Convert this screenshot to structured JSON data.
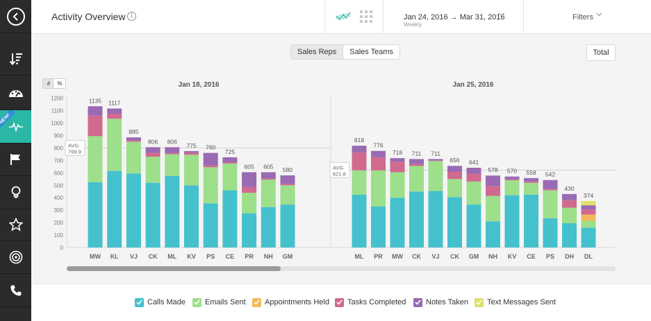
{
  "header": {
    "title": "Activity Overview",
    "info_icon": "i",
    "date_range": "Jan 24, 2016 → Mar 31, 2016",
    "granularity": "Weekly",
    "filters_label": "Filters"
  },
  "toolbar": {
    "sales_reps": "Sales Reps",
    "sales_teams": "Sales Teams",
    "total": "Total",
    "count_toggle": "#",
    "percent_toggle": "%"
  },
  "sidebar": {
    "items": [
      "back-icon",
      "sort-icon",
      "dashboard-icon",
      "activity-icon",
      "flag-icon",
      "lightbulb-icon",
      "star-icon",
      "target-icon",
      "phone-icon"
    ],
    "new_badge": "NEW!"
  },
  "colors": {
    "calls": "#45c0cd",
    "emails": "#9ddf8a",
    "appointments": "#f3b95a",
    "tasks": "#d06a8f",
    "notes": "#9a6ab2",
    "texts": "#dfe06a",
    "accent": "#2bb7a5",
    "sidebar": "#2b2b2b"
  },
  "legend": [
    {
      "label": "Calls Made",
      "key": "calls"
    },
    {
      "label": "Emails Sent",
      "key": "emails"
    },
    {
      "label": "Appointments Held",
      "key": "appointments"
    },
    {
      "label": "Tasks Completed",
      "key": "tasks"
    },
    {
      "label": "Notes Taken",
      "key": "notes"
    },
    {
      "label": "Text Messages Sent",
      "key": "texts"
    }
  ],
  "chart_data": [
    {
      "type": "bar",
      "stacked": true,
      "title": "Jan 18, 2016",
      "ylim": [
        0,
        1200
      ],
      "yticks": [
        "0",
        "100",
        "200",
        "300",
        "400",
        "500",
        "600",
        "700",
        "800",
        "900",
        "1000",
        "1100",
        "1200"
      ],
      "avg_label": "AVG",
      "avg_value": "799.9",
      "avg": 799.9,
      "categories": [
        "MW",
        "KL",
        "VJ",
        "CK",
        "ML",
        "KV",
        "PS",
        "CE",
        "PR",
        "NH",
        "GM"
      ],
      "totals": [
        "1135",
        "1117",
        "885",
        "806",
        "806",
        "775",
        "760",
        "725",
        "605",
        "605",
        "580"
      ],
      "series": [
        {
          "name": "Calls Made",
          "key": "calls",
          "values": [
            525,
            615,
            595,
            520,
            575,
            500,
            355,
            460,
            275,
            325,
            345
          ]
        },
        {
          "name": "Emails Sent",
          "key": "emails",
          "values": [
            370,
            420,
            255,
            210,
            175,
            245,
            290,
            215,
            165,
            220,
            155
          ]
        },
        {
          "name": "Appointments Held",
          "key": "appointments",
          "values": [
            0,
            0,
            0,
            0,
            0,
            0,
            0,
            0,
            0,
            0,
            0
          ]
        },
        {
          "name": "Tasks Completed",
          "key": "tasks",
          "values": [
            165,
            40,
            10,
            30,
            10,
            15,
            15,
            10,
            45,
            10,
            10
          ]
        },
        {
          "name": "Notes Taken",
          "key": "notes",
          "values": [
            75,
            42,
            25,
            46,
            46,
            15,
            100,
            40,
            120,
            50,
            70
          ]
        },
        {
          "name": "Text Messages Sent",
          "key": "texts",
          "values": [
            0,
            0,
            0,
            0,
            0,
            0,
            0,
            0,
            0,
            0,
            0
          ]
        }
      ]
    },
    {
      "type": "bar",
      "stacked": true,
      "title": "Jan 25, 2016",
      "ylim": [
        0,
        1200
      ],
      "avg_label": "AVG",
      "avg_value": "621.8",
      "avg": 621.8,
      "categories": [
        "ML",
        "PR",
        "MW",
        "CK",
        "VJ",
        "CK",
        "GM",
        "NH",
        "KV",
        "CE",
        "PS",
        "DH",
        "DL"
      ],
      "totals": [
        "818",
        "776",
        "718",
        "711",
        "711",
        "656",
        "641",
        "578",
        "570",
        "558",
        "542",
        "430",
        "374"
      ],
      "series": [
        {
          "name": "Calls Made",
          "key": "calls",
          "values": [
            425,
            330,
            400,
            450,
            455,
            405,
            345,
            210,
            420,
            425,
            235,
            195,
            160
          ]
        },
        {
          "name": "Emails Sent",
          "key": "emails",
          "values": [
            195,
            290,
            205,
            205,
            240,
            145,
            185,
            205,
            120,
            95,
            225,
            125,
            55
          ]
        },
        {
          "name": "Appointments Held",
          "key": "appointments",
          "values": [
            0,
            0,
            0,
            0,
            0,
            0,
            0,
            0,
            0,
            0,
            0,
            0,
            50
          ]
        },
        {
          "name": "Tasks Completed",
          "key": "tasks",
          "values": [
            145,
            105,
            85,
            15,
            5,
            60,
            60,
            80,
            10,
            10,
            10,
            60,
            40
          ]
        },
        {
          "name": "Notes Taken",
          "key": "notes",
          "values": [
            53,
            51,
            28,
            41,
            11,
            46,
            51,
            83,
            20,
            28,
            72,
            50,
            34
          ]
        },
        {
          "name": "Text Messages Sent",
          "key": "texts",
          "values": [
            0,
            0,
            0,
            0,
            0,
            0,
            0,
            0,
            0,
            0,
            0,
            0,
            35
          ]
        }
      ]
    }
  ],
  "scrollbar": {
    "position": 0.0,
    "visible_fraction": 0.39
  }
}
